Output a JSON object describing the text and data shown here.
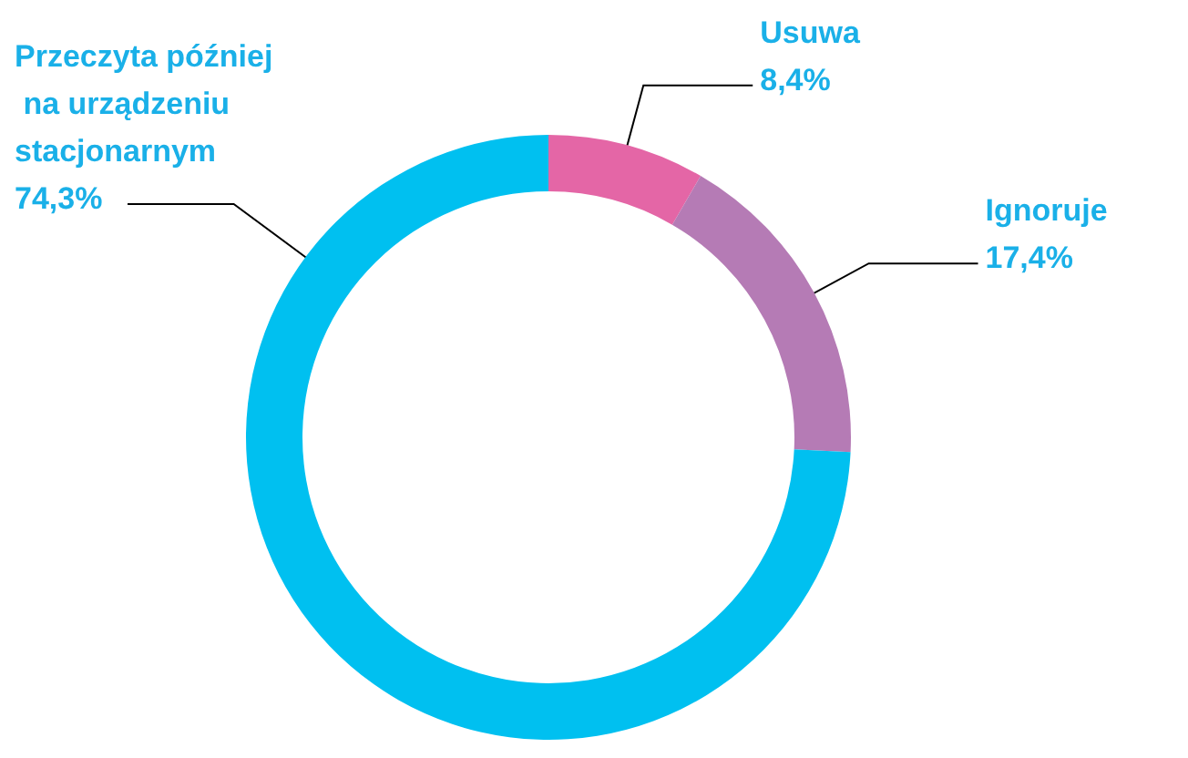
{
  "chart_data": {
    "type": "donut",
    "categories": [
      "Usuwa",
      "Ignoruje",
      "Przeczyta później na urządzeniu stacjonarnym"
    ],
    "values": [
      8.4,
      17.4,
      74.3
    ],
    "value_labels": [
      "8,4%",
      "17,4%",
      "74,3%"
    ],
    "colors": [
      "#e466a6",
      "#b57bb5",
      "#00c0f0"
    ],
    "legend": false
  }
}
